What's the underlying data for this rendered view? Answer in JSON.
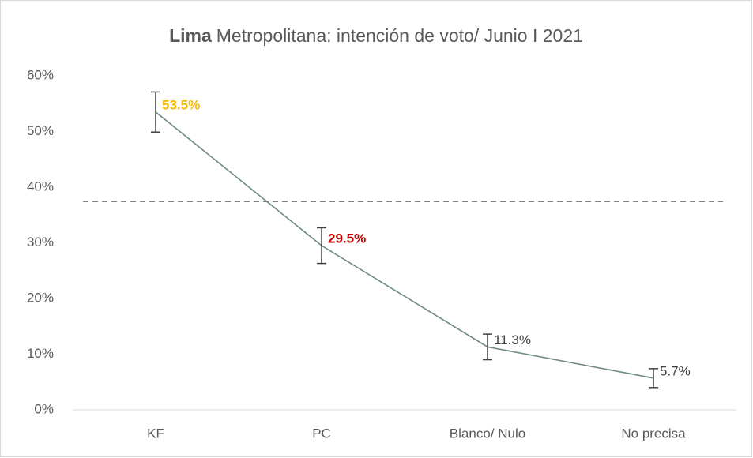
{
  "chart_data": {
    "type": "line",
    "title": [
      "Lima",
      "Metropolitana: intención de voto/ Junio I 2021"
    ],
    "categories": [
      "KF",
      "PC",
      "Blanco/ Nulo",
      "No precisa"
    ],
    "values": [
      53.5,
      29.5,
      11.3,
      5.7
    ],
    "value_labels": [
      "53.5%",
      "29.5%",
      "11.3%",
      "5.7%"
    ],
    "label_colors": [
      "#f5b800",
      "#c00000",
      "#404040",
      "#404040"
    ],
    "errors": [
      3.6,
      3.2,
      2.3,
      1.7
    ],
    "color": "#6e8b7b",
    "reference_line": 37.4,
    "ylim": [
      0,
      60
    ],
    "yticks": [
      {
        "value": 0,
        "label": "0%"
      },
      {
        "value": 10,
        "label": "10%"
      },
      {
        "value": 20,
        "label": "20%"
      },
      {
        "value": 30,
        "label": "30%"
      },
      {
        "value": 40,
        "label": "40%"
      },
      {
        "value": 50,
        "label": "50%"
      },
      {
        "value": 60,
        "label": "60%"
      }
    ]
  }
}
